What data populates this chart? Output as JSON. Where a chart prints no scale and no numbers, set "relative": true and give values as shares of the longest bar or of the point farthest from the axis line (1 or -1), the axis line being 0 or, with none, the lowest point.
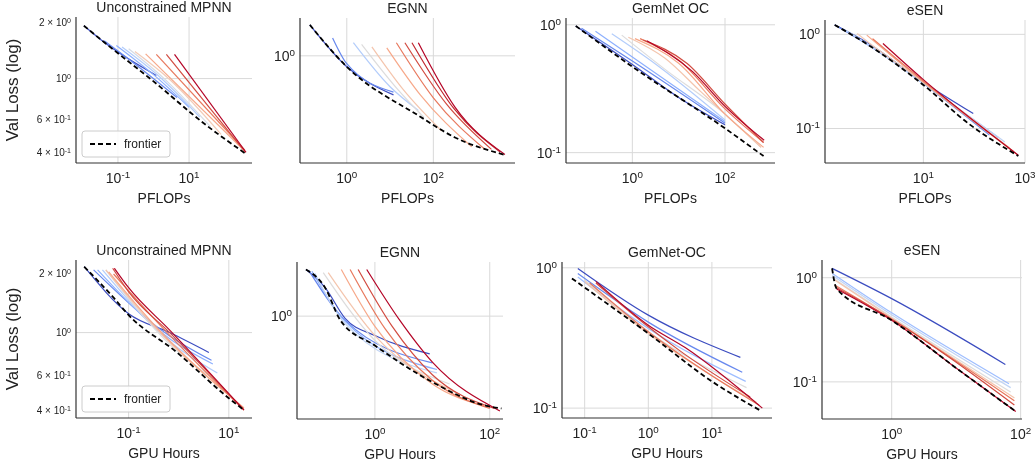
{
  "chart_data": [
    {
      "type": "line",
      "title": "Unconstrained MPNN",
      "xlabel": "PFLOPs",
      "ylabel": "Val Loss (log)",
      "log": "xy",
      "grid": true,
      "legend": "bottom left",
      "xlim": [
        0.0066,
        590
      ],
      "ylim": [
        0.35,
        2.15
      ],
      "xticks": [
        {
          "value": 0.1,
          "label": "10$^{-1}$"
        },
        {
          "value": 10,
          "label": "10$^{1}$"
        }
      ],
      "yticks": [
        {
          "value": 2,
          "label": "2 × 10$^{0}$"
        },
        {
          "value": 1,
          "label": "10$^{0}$"
        },
        {
          "value": 0.6,
          "label": "6 × 10$^{-1}$"
        },
        {
          "value": 0.4,
          "label": "4 × 10$^{-1}$"
        }
      ],
      "series": [
        {
          "color": "#3b4cc0",
          "x": [
            0.011,
            0.041,
            1.2
          ],
          "values": [
            1.93,
            1.57,
            1.04
          ]
        },
        {
          "color": "#6788ee",
          "x": [
            0.041,
            0.3,
            4.6
          ],
          "values": [
            1.6,
            1.2,
            0.79
          ]
        },
        {
          "color": "#8db0fe",
          "x": [
            0.09,
            1,
            10
          ],
          "values": [
            1.51,
            1.05,
            0.7
          ]
        },
        {
          "color": "#b3cdfb",
          "x": [
            0.13,
            1.5,
            20
          ],
          "values": [
            1.48,
            1.02,
            0.62
          ]
        },
        {
          "color": "#d5dbe5",
          "x": [
            0.2,
            2,
            40
          ],
          "values": [
            1.45,
            1.0,
            0.55
          ]
        },
        {
          "color": "#f2cbb7",
          "x": [
            0.3,
            3,
            80
          ],
          "values": [
            1.4,
            0.98,
            0.5
          ]
        },
        {
          "color": "#f7a889",
          "x": [
            0.6,
            350
          ],
          "values": [
            1.36,
            0.41
          ]
        },
        {
          "color": "#e8785d",
          "x": [
            1.2,
            370
          ],
          "values": [
            1.35,
            0.41
          ]
        },
        {
          "color": "#d24b40",
          "x": [
            2.3,
            390
          ],
          "values": [
            1.35,
            0.4
          ]
        },
        {
          "color": "#b40426",
          "x": [
            3.9,
            400
          ],
          "values": [
            1.35,
            0.4
          ]
        },
        {
          "name": "frontier",
          "color": "#000000",
          "line_style": "dashed",
          "x": [
            0.011,
            0.041,
            0.1,
            0.94,
            27,
            414
          ],
          "values": [
            1.93,
            1.57,
            1.37,
            0.975,
            0.57,
            0.39
          ]
        }
      ]
    },
    {
      "type": "line",
      "title": "EGNN",
      "xlabel": "PFLOPs",
      "log": "x",
      "grid": true,
      "relative": true,
      "xlim": [
        0.083,
        7700
      ],
      "xticks": [
        {
          "value": 1,
          "label": "10$^{0}$"
        },
        {
          "value": 100,
          "label": "10$^{2}$"
        }
      ],
      "ref_lines": [
        {
          "axis": "y",
          "value": 0.776
        }
      ],
      "annotations": [
        "10$^{0}$"
      ],
      "series": [
        {
          "color": "#3b4cc0",
          "x": [
            0.14,
            1,
            12
          ],
          "values": [
            1.0,
            0.697,
            0.493
          ]
        },
        {
          "color": "#6788ee",
          "x": [
            0.47,
            1,
            12
          ],
          "values": [
            0.906,
            0.719,
            0.513
          ]
        },
        {
          "color": "#b3cdfb",
          "x": [
            1.42,
            10,
            45
          ],
          "values": [
            0.871,
            0.552,
            0.381
          ]
        },
        {
          "color": "#dddcdc",
          "x": [
            2.2,
            15,
            60
          ],
          "values": [
            0.859,
            0.533,
            0.331
          ]
        },
        {
          "color": "#f4c5ad",
          "x": [
            3.8,
            20,
            156
          ],
          "values": [
            0.841,
            0.533,
            0.232
          ]
        },
        {
          "color": "#f7a889",
          "x": [
            8.4,
            50,
            770
          ],
          "values": [
            0.834,
            0.493,
            0.117
          ]
        },
        {
          "color": "#e8785d",
          "x": [
            14,
            100,
            1550
          ],
          "values": [
            0.871,
            0.472,
            0.099
          ]
        },
        {
          "color": "#d24b40",
          "x": [
            22,
            200,
            2200
          ],
          "values": [
            0.871,
            0.428,
            0.099
          ]
        },
        {
          "color": "#c0282f",
          "x": [
            32,
            300,
            3500
          ],
          "values": [
            0.871,
            0.393,
            0.08
          ]
        },
        {
          "color": "#b40426",
          "x": [
            45,
            316,
            4500
          ],
          "values": [
            0.871,
            0.405,
            0.061
          ]
        },
        {
          "color": "#000000",
          "line_style": "dashed",
          "x": [
            0.14,
            1,
            45,
            316,
            4200
          ],
          "values": [
            1.0,
            0.697,
            0.344,
            0.185,
            0.061
          ]
        }
      ]
    },
    {
      "type": "line",
      "title": "GemNet OC",
      "xlabel": "PFLOPs",
      "log": "xy",
      "grid": true,
      "xlim": [
        0.037,
        1200
      ],
      "ylim": [
        0.083,
        1.13
      ],
      "xticks": [
        {
          "value": 1,
          "label": "10$^{0}$"
        },
        {
          "value": 100,
          "label": "10$^{2}$"
        }
      ],
      "yticks": [
        {
          "value": 1,
          "label": "10$^{0}$"
        },
        {
          "value": 0.1,
          "label": "10$^{-1}$"
        }
      ],
      "series": [
        {
          "color": "#3b4cc0",
          "x": [
            0.06,
            1,
            10,
            100
          ],
          "values": [
            0.98,
            0.49,
            0.27,
            0.165
          ]
        },
        {
          "color": "#6788ee",
          "x": [
            0.08,
            1,
            100
          ],
          "values": [
            0.94,
            0.52,
            0.17
          ]
        },
        {
          "color": "#8db0fe",
          "x": [
            0.16,
            1,
            100
          ],
          "values": [
            0.89,
            0.56,
            0.175
          ]
        },
        {
          "color": "#b3cdfb",
          "x": [
            0.36,
            3,
            100
          ],
          "values": [
            0.85,
            0.5,
            0.18
          ]
        },
        {
          "color": "#dddcdc",
          "x": [
            0.59,
            5,
            100,
            600
          ],
          "values": [
            0.83,
            0.45,
            0.2,
            0.11
          ]
        },
        {
          "color": "#f4c5ad",
          "x": [
            0.82,
            5,
            30,
            600
          ],
          "values": [
            0.8,
            0.55,
            0.3,
            0.11
          ]
        },
        {
          "color": "#f7a889",
          "x": [
            1.14,
            10,
            100,
            680
          ],
          "values": [
            0.78,
            0.5,
            0.2,
            0.11
          ]
        },
        {
          "color": "#e8785d",
          "x": [
            1.47,
            10,
            100,
            680
          ],
          "values": [
            0.78,
            0.53,
            0.22,
            0.12
          ]
        },
        {
          "color": "#d24b40",
          "x": [
            1.73,
            15,
            100,
            680
          ],
          "values": [
            0.76,
            0.5,
            0.24,
            0.12
          ]
        },
        {
          "color": "#b40426",
          "x": [
            2.05,
            20,
            100,
            700
          ],
          "values": [
            0.75,
            0.43,
            0.23,
            0.125
          ]
        },
        {
          "color": "#000000",
          "line_style": "dashed",
          "x": [
            0.06,
            1,
            100,
            680
          ],
          "values": [
            0.98,
            0.47,
            0.155,
            0.094
          ]
        }
      ]
    },
    {
      "type": "line",
      "title": "eSEN",
      "xlabel": "PFLOPs",
      "log": "xy",
      "grid": true,
      "xlim": [
        0.116,
        1000
      ],
      "ylim": [
        0.043,
        1.42
      ],
      "xticks": [
        {
          "value": 10,
          "label": "10$^{1}$"
        },
        {
          "value": 1000,
          "label": "10$^{3}$"
        }
      ],
      "yticks": [
        {
          "value": 1,
          "label": "10$^{0}$"
        },
        {
          "value": 0.1,
          "label": "10$^{-1}$"
        }
      ],
      "series": [
        {
          "color": "#3b4cc0",
          "x": [
            0.18,
            0.83,
            10,
            96
          ],
          "values": [
            1.26,
            0.8,
            0.31,
            0.144
          ]
        },
        {
          "color": "#6788ee",
          "x": [
            0.2,
            1,
            10,
            200
          ],
          "values": [
            1.22,
            0.72,
            0.3,
            0.085
          ]
        },
        {
          "color": "#8db0fe",
          "x": [
            0.25,
            1,
            10,
            300
          ],
          "values": [
            1.15,
            0.73,
            0.3,
            0.08
          ]
        },
        {
          "color": "#c0d4f5",
          "x": [
            0.3,
            1,
            10,
            400
          ],
          "values": [
            1.1,
            0.73,
            0.3,
            0.072
          ]
        },
        {
          "color": "#f2cbb7",
          "x": [
            0.5,
            1,
            10,
            500
          ],
          "values": [
            1.02,
            0.76,
            0.31,
            0.062
          ]
        },
        {
          "color": "#f7a889",
          "x": [
            0.77,
            10,
            600
          ],
          "values": [
            0.98,
            0.31,
            0.057
          ]
        },
        {
          "color": "#e8785d",
          "x": [
            1.0,
            10,
            700
          ],
          "values": [
            0.9,
            0.32,
            0.053
          ]
        },
        {
          "color": "#b40426",
          "x": [
            1.6,
            10,
            740
          ],
          "values": [
            0.8,
            0.33,
            0.052
          ]
        },
        {
          "color": "#000000",
          "line_style": "dashed",
          "x": [
            0.18,
            0.83,
            10,
            77,
            740
          ],
          "values": [
            1.26,
            0.77,
            0.29,
            0.113,
            0.051
          ]
        }
      ]
    },
    {
      "type": "line",
      "title": "Unconstrained MPNN",
      "xlabel": "GPU Hours",
      "ylabel": "Val Loss (log)",
      "log": "xy",
      "grid": true,
      "legend": "bottom left",
      "xlim": [
        0.0089,
        29
      ],
      "ylim": [
        0.364,
        2.36
      ],
      "xticks": [
        {
          "value": 0.1,
          "label": "10$^{-1}$"
        },
        {
          "value": 10,
          "label": "10$^{1}$"
        }
      ],
      "yticks": [
        {
          "value": 2,
          "label": "2 × 10$^{0}$"
        },
        {
          "value": 1,
          "label": "10$^{0}$"
        },
        {
          "value": 0.6,
          "label": "6 × 10$^{-1}$"
        },
        {
          "value": 0.4,
          "label": "4 × 10$^{-1}$"
        }
      ],
      "series": [
        {
          "color": "#3b4cc0",
          "x": [
            0.013,
            0.1,
            0.66,
            4
          ],
          "values": [
            2.18,
            1.25,
            1.0,
            0.79
          ]
        },
        {
          "color": "#6788ee",
          "x": [
            0.02,
            0.66,
            4.5
          ],
          "values": [
            2.1,
            0.96,
            0.72
          ]
        },
        {
          "color": "#8db0fe",
          "x": [
            0.024,
            0.66,
            4.8
          ],
          "values": [
            2.1,
            0.93,
            0.69
          ]
        },
        {
          "color": "#b3cdfb",
          "x": [
            0.03,
            0.66,
            5.9
          ],
          "values": [
            2.1,
            0.9,
            0.62
          ]
        },
        {
          "color": "#dddcdc",
          "x": [
            0.035,
            0.66,
            6.5
          ],
          "values": [
            2.1,
            0.87,
            0.55
          ]
        },
        {
          "color": "#f4c5ad",
          "x": [
            0.035,
            0.3,
            20
          ],
          "values": [
            2.1,
            1.1,
            0.41
          ]
        },
        {
          "color": "#f7a889",
          "x": [
            0.04,
            0.3,
            20
          ],
          "values": [
            2.05,
            1.12,
            0.41
          ]
        },
        {
          "color": "#e8785d",
          "x": [
            0.05,
            0.3,
            20
          ],
          "values": [
            2.0,
            1.2,
            0.4
          ]
        },
        {
          "color": "#d24b40",
          "x": [
            0.048,
            0.1,
            0.66,
            20
          ],
          "values": [
            2.14,
            1.62,
            1.0,
            0.4
          ]
        },
        {
          "color": "#b40426",
          "x": [
            0.052,
            0.1,
            0.66,
            20
          ],
          "values": [
            2.14,
            1.7,
            1.03,
            0.4
          ]
        },
        {
          "name": "frontier",
          "color": "#000000",
          "line_style": "dashed",
          "x": [
            0.013,
            0.048,
            0.1,
            0.87,
            10,
            20
          ],
          "values": [
            2.18,
            1.53,
            1.23,
            0.8,
            0.46,
            0.4
          ]
        }
      ]
    },
    {
      "type": "line",
      "title": "EGNN",
      "xlabel": "GPU Hours",
      "log": "x",
      "grid": true,
      "relative": true,
      "xlim": [
        0.044,
        170
      ],
      "xticks": [
        {
          "value": 1,
          "label": "10$^{0}$"
        },
        {
          "value": 100,
          "label": "10$^{2}$"
        }
      ],
      "ref_lines": [
        {
          "axis": "y",
          "value": 0.688
        }
      ],
      "annotations": [
        "10$^{0}$"
      ],
      "series": [
        {
          "color": "#3b4cc0",
          "x": [
            0.063,
            0.135,
            0.3,
            1,
            9
          ],
          "values": [
            1.0,
            0.88,
            0.675,
            0.558,
            0.435
          ]
        },
        {
          "color": "#6788ee",
          "x": [
            0.07,
            0.3,
            10
          ],
          "values": [
            0.996,
            0.661,
            0.375
          ]
        },
        {
          "color": "#8db0fe",
          "x": [
            0.08,
            0.3,
            12
          ],
          "values": [
            0.988,
            0.654,
            0.331
          ]
        },
        {
          "color": "#c0d4f5",
          "x": [
            0.09,
            0.3,
            12
          ],
          "values": [
            0.975,
            0.64,
            0.308
          ]
        },
        {
          "color": "#dddcdc",
          "x": [
            0.126,
            1,
            20
          ],
          "values": [
            0.979,
            0.525,
            0.234
          ]
        },
        {
          "color": "#f4c5ad",
          "x": [
            0.154,
            1,
            30
          ],
          "values": [
            0.979,
            0.558,
            0.165
          ]
        },
        {
          "color": "#f7a889",
          "x": [
            0.26,
            1,
            10,
            80
          ],
          "values": [
            1.0,
            0.619,
            0.234,
            0.088
          ]
        },
        {
          "color": "#e8785d",
          "x": [
            0.37,
            1.5,
            10,
            100
          ],
          "values": [
            1.0,
            0.604,
            0.259,
            0.071
          ]
        },
        {
          "color": "#d24b40",
          "x": [
            0.51,
            2,
            10,
            120
          ],
          "values": [
            1.0,
            0.619,
            0.296,
            0.071
          ]
        },
        {
          "color": "#b40426",
          "x": [
            0.72,
            2.7,
            10.3,
            150
          ],
          "values": [
            1.0,
            0.661,
            0.375,
            0.054
          ]
        },
        {
          "color": "#000000",
          "line_style": "dashed",
          "x": [
            0.063,
            0.135,
            0.25,
            1,
            10,
            88,
            160
          ],
          "values": [
            1.0,
            0.88,
            0.661,
            0.491,
            0.247,
            0.088,
            0.071
          ]
        }
      ]
    },
    {
      "type": "line",
      "title": "GemNet-OC",
      "xlabel": "GPU Hours",
      "log": "xy",
      "grid": true,
      "xlim": [
        0.044,
        88
      ],
      "ylim": [
        0.085,
        1.1
      ],
      "xticks": [
        {
          "value": 0.1,
          "label": "10$^{-1}$"
        },
        {
          "value": 1,
          "label": "10$^{0}$"
        },
        {
          "value": 10,
          "label": "10$^{1}$"
        }
      ],
      "yticks": [
        {
          "value": 1,
          "label": "10$^{0}$"
        },
        {
          "value": 0.1,
          "label": "10$^{-1}$"
        }
      ],
      "series": [
        {
          "color": "#3b4cc0",
          "x": [
            0.078,
            1,
            28
          ],
          "values": [
            0.99,
            0.46,
            0.23
          ]
        },
        {
          "color": "#6788ee",
          "x": [
            0.078,
            1,
            30
          ],
          "values": [
            0.91,
            0.41,
            0.18
          ]
        },
        {
          "color": "#9ebeff",
          "x": [
            0.078,
            1,
            34
          ],
          "values": [
            0.86,
            0.37,
            0.155
          ]
        },
        {
          "color": "#dddcdc",
          "x": [
            0.1,
            1,
            35
          ],
          "values": [
            0.82,
            0.35,
            0.14
          ]
        },
        {
          "color": "#f4c5ad",
          "x": [
            0.1,
            1,
            10,
            50
          ],
          "values": [
            0.8,
            0.34,
            0.17,
            0.11
          ]
        },
        {
          "color": "#e8785d",
          "x": [
            0.12,
            1,
            10,
            55
          ],
          "values": [
            0.78,
            0.35,
            0.17,
            0.105
          ]
        },
        {
          "color": "#d24b40",
          "x": [
            0.15,
            1,
            3,
            40
          ],
          "values": [
            0.78,
            0.38,
            0.26,
            0.12
          ]
        },
        {
          "color": "#b40426",
          "x": [
            0.15,
            1,
            3.8,
            62
          ],
          "values": [
            0.8,
            0.39,
            0.27,
            0.1
          ]
        },
        {
          "color": "#000000",
          "line_style": "dashed",
          "x": [
            0.063,
            1,
            10,
            58
          ],
          "values": [
            0.84,
            0.34,
            0.155,
            0.096
          ]
        }
      ]
    },
    {
      "type": "line",
      "title": "eSEN",
      "xlabel": "GPU Hours",
      "log": "xy",
      "grid": true,
      "xlim": [
        0.083,
        105
      ],
      "ylim": [
        0.044,
        1.48
      ],
      "xticks": [
        {
          "value": 1,
          "label": "10$^{0}$"
        },
        {
          "value": 100,
          "label": "10$^{2}$"
        }
      ],
      "yticks": [
        {
          "value": 1,
          "label": "10$^{0}$"
        },
        {
          "value": 0.1,
          "label": "10$^{-1}$"
        }
      ],
      "series": [
        {
          "color": "#3b4cc0",
          "x": [
            0.119,
            1,
            58
          ],
          "values": [
            1.23,
            0.63,
            0.147
          ]
        },
        {
          "color": "#9ebeff",
          "x": [
            0.12,
            1,
            66
          ],
          "values": [
            1.1,
            0.46,
            0.096
          ]
        },
        {
          "color": "#c0d4f5",
          "x": [
            0.12,
            1,
            70
          ],
          "values": [
            1.05,
            0.44,
            0.088
          ]
        },
        {
          "color": "#dddcdc",
          "x": [
            0.12,
            1,
            70
          ],
          "values": [
            1.0,
            0.42,
            0.08
          ]
        },
        {
          "color": "#f4c5ad",
          "x": [
            0.13,
            1,
            80
          ],
          "values": [
            0.95,
            0.41,
            0.07
          ]
        },
        {
          "color": "#e8785d",
          "x": [
            0.13,
            1,
            80
          ],
          "values": [
            0.85,
            0.4,
            0.066
          ]
        },
        {
          "color": "#d24b40",
          "x": [
            0.14,
            1,
            80
          ],
          "values": [
            0.8,
            0.4,
            0.06
          ]
        },
        {
          "color": "#b40426",
          "x": [
            0.14,
            1,
            11,
            84
          ],
          "values": [
            0.78,
            0.39,
            0.13,
            0.052
          ]
        },
        {
          "color": "#000000",
          "line_style": "dashed",
          "x": [
            0.119,
            0.139,
            1,
            11,
            84
          ],
          "values": [
            1.23,
            0.79,
            0.39,
            0.13,
            0.052
          ]
        }
      ]
    }
  ]
}
